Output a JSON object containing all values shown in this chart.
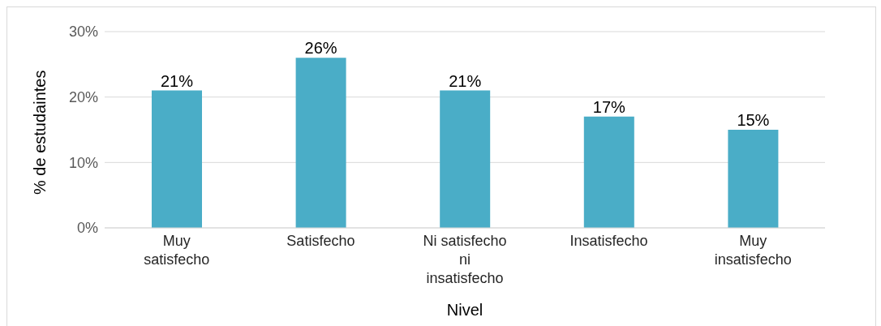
{
  "chart_data": {
    "type": "bar",
    "xlabel": "Nivel",
    "ylabel": "% de estudaintes",
    "categories": [
      "Muy satisfecho",
      "Satisfecho",
      "Ni satisfecho ni insatisfecho",
      "Insatisfecho",
      "Muy insatisfecho"
    ],
    "values": [
      21,
      26,
      21,
      17,
      15
    ],
    "value_labels": [
      "21%",
      "26%",
      "21%",
      "17%",
      "15%"
    ],
    "color": "#4aadc7",
    "ylim": [
      0,
      30
    ],
    "yticks": [
      {
        "value": 0,
        "label": "0%"
      },
      {
        "value": 10,
        "label": "10%"
      },
      {
        "value": 20,
        "label": "20%"
      },
      {
        "value": 30,
        "label": "30%"
      }
    ],
    "grid": "y",
    "legend": false
  }
}
